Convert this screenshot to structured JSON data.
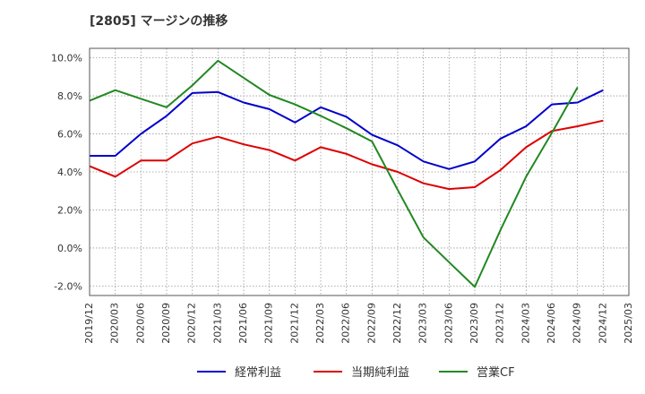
{
  "chart_data": {
    "type": "line",
    "title": "[2805]  マージンの推移",
    "x": [
      "2019/12",
      "2020/03",
      "2020/06",
      "2020/09",
      "2020/12",
      "2021/03",
      "2021/06",
      "2021/09",
      "2021/12",
      "2022/03",
      "2022/06",
      "2022/09",
      "2022/12",
      "2023/03",
      "2023/06",
      "2023/09",
      "2023/12",
      "2024/03",
      "2024/06",
      "2024/09",
      "2024/12",
      "2025/03"
    ],
    "ylim": [
      -2.5,
      10.5
    ],
    "yticks": [
      -2.0,
      0.0,
      2.0,
      4.0,
      6.0,
      8.0,
      10.0
    ],
    "ytick_labels": [
      "-2.0%",
      "0.0%",
      "2.0%",
      "4.0%",
      "6.0%",
      "8.0%",
      "10.0%"
    ],
    "grid": true,
    "legend_position": "bottom",
    "series": [
      {
        "name": "経常利益",
        "color": "#0000cc",
        "values": [
          4.85,
          4.85,
          6.0,
          6.95,
          8.15,
          8.2,
          7.65,
          7.3,
          6.6,
          7.4,
          6.9,
          5.95,
          5.4,
          4.55,
          4.15,
          4.55,
          5.75,
          6.4,
          7.55,
          7.65,
          8.3,
          null
        ]
      },
      {
        "name": "当期純利益",
        "color": "#dd0000",
        "values": [
          4.3,
          3.75,
          4.6,
          4.6,
          5.5,
          5.85,
          5.45,
          5.15,
          4.6,
          5.3,
          4.95,
          4.4,
          4.0,
          3.4,
          3.1,
          3.2,
          4.1,
          5.3,
          6.15,
          6.4,
          6.7,
          null
        ]
      },
      {
        "name": "営業CF",
        "color": "#228822",
        "values": [
          7.75,
          8.3,
          7.85,
          7.4,
          8.55,
          9.85,
          8.95,
          8.05,
          7.55,
          6.95,
          6.3,
          5.6,
          3.05,
          0.55,
          -0.75,
          -2.05,
          0.95,
          3.75,
          6.05,
          8.45,
          null,
          null
        ]
      }
    ]
  }
}
